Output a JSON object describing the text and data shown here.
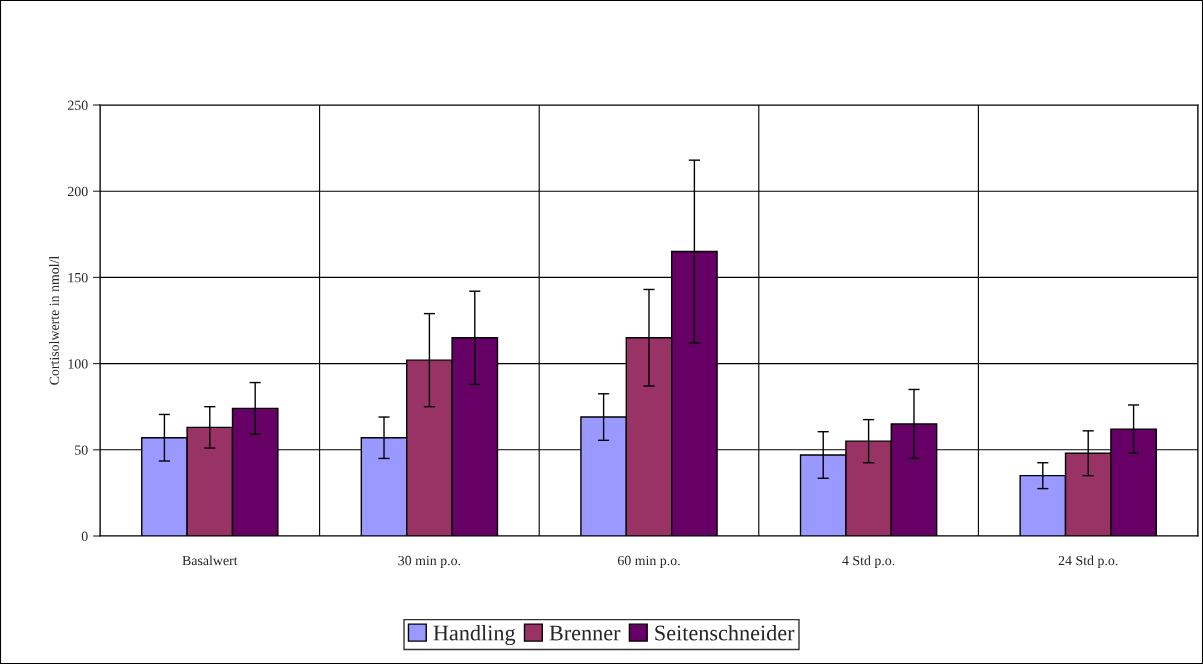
{
  "chart_data": {
    "type": "bar",
    "ylabel": "Cortisolwerte in nmol/l",
    "categories": [
      "Basalwert",
      "30 min p.o.",
      "60 min p.o.",
      "4 Std p.o.",
      "24 Std p.o."
    ],
    "series": [
      {
        "name": "Handling",
        "color": "#9999ff",
        "values": [
          57,
          57,
          69,
          47,
          35
        ],
        "errors": [
          13.5,
          12,
          13.5,
          13.5,
          7.5
        ]
      },
      {
        "name": "Brenner",
        "color": "#993366",
        "values": [
          63,
          102,
          115,
          55,
          48
        ],
        "errors": [
          12,
          27,
          28,
          12.5,
          13
        ]
      },
      {
        "name": "Seitenschneider",
        "color": "#660066",
        "values": [
          74,
          115,
          165,
          65,
          62
        ],
        "errors": [
          15,
          27,
          53,
          20,
          14
        ]
      }
    ],
    "ylim": [
      0,
      250
    ],
    "yticks": [
      0,
      50,
      100,
      150,
      200,
      250
    ],
    "grid": true,
    "legend": "bottom"
  }
}
